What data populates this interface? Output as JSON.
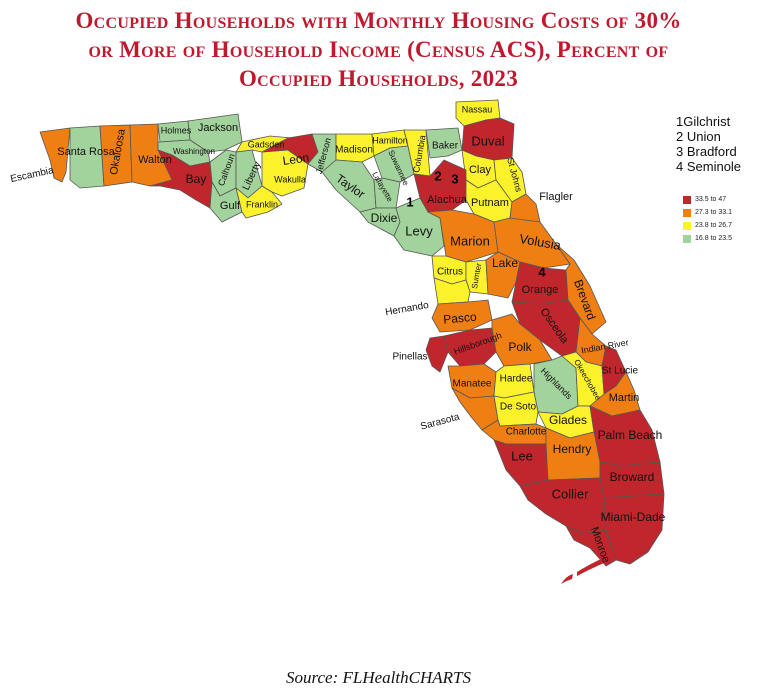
{
  "title": {
    "line1": "Occupied Households with Monthly Housing Costs of 30%",
    "line2": "or  More of Household Income (Census ACS), Percent of",
    "line3": "Occupied Households, 2023"
  },
  "key_notes": [
    "1Gilchrist",
    "2 Union",
    "3 Bradford",
    "4 Seminole"
  ],
  "legend": [
    {
      "label": "33.5 to 47",
      "color": "#c0272d"
    },
    {
      "label": "27.3 to 33.1",
      "color": "#f07f13"
    },
    {
      "label": "23.8 to 26.7",
      "color": "#fbf22c"
    },
    {
      "label": "16.8 to 23.5",
      "color": "#a3d39c"
    }
  ],
  "counties": [
    {
      "name": "Escambia",
      "class": 1
    },
    {
      "name": "Santa Rosa",
      "class": 3
    },
    {
      "name": "Okaloosa",
      "class": 1
    },
    {
      "name": "Walton",
      "class": 1
    },
    {
      "name": "Holmes",
      "class": 3
    },
    {
      "name": "Jackson",
      "class": 3
    },
    {
      "name": "Washington",
      "class": 3
    },
    {
      "name": "Bay",
      "class": 0
    },
    {
      "name": "Calhoun",
      "class": 3
    },
    {
      "name": "Gulf",
      "class": 3
    },
    {
      "name": "Liberty",
      "class": 3
    },
    {
      "name": "Gadsden",
      "class": 2
    },
    {
      "name": "Franklin",
      "class": 2
    },
    {
      "name": "Wakulla",
      "class": 2
    },
    {
      "name": "Leon",
      "class": 0
    },
    {
      "name": "Jefferson",
      "class": 3
    },
    {
      "name": "Madison",
      "class": 2
    },
    {
      "name": "Taylor",
      "class": 3
    },
    {
      "name": "Hamilton",
      "class": 2
    },
    {
      "name": "Suwannee",
      "class": 3
    },
    {
      "name": "Lafayette",
      "class": 3
    },
    {
      "name": "Dixie",
      "class": 3
    },
    {
      "name": "Columbia",
      "class": 2
    },
    {
      "name": "Baker",
      "class": 3
    },
    {
      "name": "Nassau",
      "class": 2
    },
    {
      "name": "Duval",
      "class": 0
    },
    {
      "name": "Clay",
      "class": 2
    },
    {
      "name": "St Johns",
      "class": 2
    },
    {
      "name": "Alachua",
      "class": 0
    },
    {
      "name": "Putnam",
      "class": 2
    },
    {
      "name": "Flagler",
      "class": 1
    },
    {
      "name": "Levy",
      "class": 3
    },
    {
      "name": "Marion",
      "class": 1
    },
    {
      "name": "Volusia",
      "class": 1
    },
    {
      "name": "Citrus",
      "class": 2
    },
    {
      "name": "Sumter",
      "class": 2
    },
    {
      "name": "Lake",
      "class": 1
    },
    {
      "name": "Orange",
      "class": 0
    },
    {
      "name": "Brevard",
      "class": 1
    },
    {
      "name": "Hernando",
      "class": 2
    },
    {
      "name": "Pasco",
      "class": 1
    },
    {
      "name": "Osceola",
      "class": 0
    },
    {
      "name": "Pinellas",
      "class": 0
    },
    {
      "name": "Hillsborough",
      "class": 0
    },
    {
      "name": "Polk",
      "class": 1
    },
    {
      "name": "Indian River",
      "class": 1
    },
    {
      "name": "Manatee",
      "class": 1
    },
    {
      "name": "Hardee",
      "class": 2
    },
    {
      "name": "Highlands",
      "class": 3
    },
    {
      "name": "Okeechobee",
      "class": 2
    },
    {
      "name": "St Lucie",
      "class": 0
    },
    {
      "name": "Martin",
      "class": 1
    },
    {
      "name": "Sarasota",
      "class": 1
    },
    {
      "name": "De Soto",
      "class": 2
    },
    {
      "name": "Charlotte",
      "class": 1
    },
    {
      "name": "Glades",
      "class": 2
    },
    {
      "name": "Palm Beach",
      "class": 0
    },
    {
      "name": "Lee",
      "class": 0
    },
    {
      "name": "Hendry",
      "class": 1
    },
    {
      "name": "Broward",
      "class": 0
    },
    {
      "name": "Collier",
      "class": 0
    },
    {
      "name": "Miami-Dade",
      "class": 0
    },
    {
      "name": "Monroe",
      "class": 0
    }
  ],
  "map_numbers": [
    "1",
    "2",
    "3",
    "4"
  ],
  "source": "Source: FLHealthCHARTS"
}
